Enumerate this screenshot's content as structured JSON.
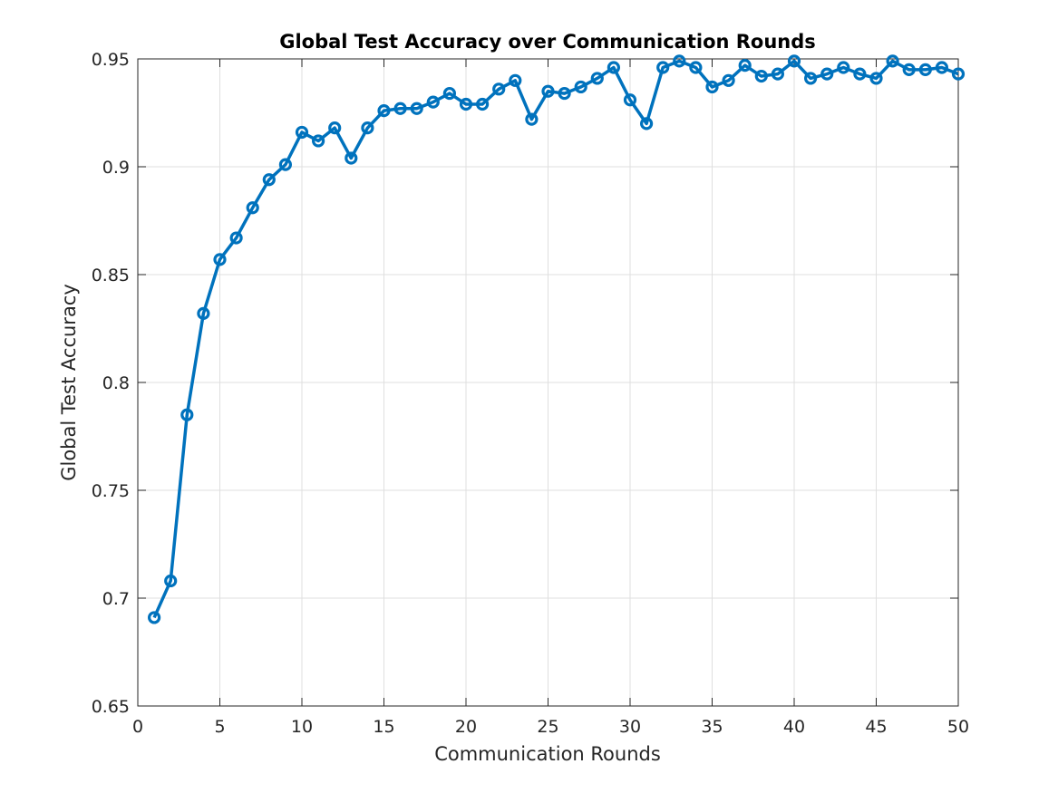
{
  "chart_data": {
    "type": "line",
    "title": "Global Test Accuracy over Communication Rounds",
    "xlabel": "Communication Rounds",
    "ylabel": "Global Test Accuracy",
    "xlim": [
      0,
      50
    ],
    "ylim": [
      0.65,
      0.95
    ],
    "xticks": [
      0,
      5,
      10,
      15,
      20,
      25,
      30,
      35,
      40,
      45,
      50
    ],
    "xtick_labels": [
      "0",
      "5",
      "10",
      "15",
      "20",
      "25",
      "30",
      "35",
      "40",
      "45",
      "50"
    ],
    "yticks": [
      0.65,
      0.7,
      0.75,
      0.8,
      0.85,
      0.9,
      0.95
    ],
    "ytick_labels": [
      "0.65",
      "0.7",
      "0.75",
      "0.8",
      "0.85",
      "0.9",
      "0.95"
    ],
    "grid": true,
    "marker": "circle",
    "color": "#0072bd",
    "series": [
      {
        "x": [
          1,
          2,
          3,
          4,
          5,
          6,
          7,
          8,
          9,
          10,
          11,
          12,
          13,
          14,
          15,
          16,
          17,
          18,
          19,
          20,
          21,
          22,
          23,
          24,
          25,
          26,
          27,
          28,
          29,
          30,
          31,
          32,
          33,
          34,
          35,
          36,
          37,
          38,
          39,
          40,
          41,
          42,
          43,
          44,
          45,
          46,
          47,
          48,
          49,
          50
        ],
        "values": [
          0.691,
          0.708,
          0.785,
          0.832,
          0.857,
          0.867,
          0.881,
          0.894,
          0.901,
          0.916,
          0.912,
          0.918,
          0.904,
          0.918,
          0.926,
          0.927,
          0.927,
          0.93,
          0.934,
          0.929,
          0.929,
          0.936,
          0.94,
          0.922,
          0.935,
          0.934,
          0.937,
          0.941,
          0.946,
          0.931,
          0.92,
          0.946,
          0.949,
          0.946,
          0.937,
          0.94,
          0.947,
          0.942,
          0.943,
          0.949,
          0.941,
          0.943,
          0.946,
          0.943,
          0.941,
          0.949,
          0.945,
          0.945,
          0.946,
          0.943
        ]
      }
    ]
  }
}
